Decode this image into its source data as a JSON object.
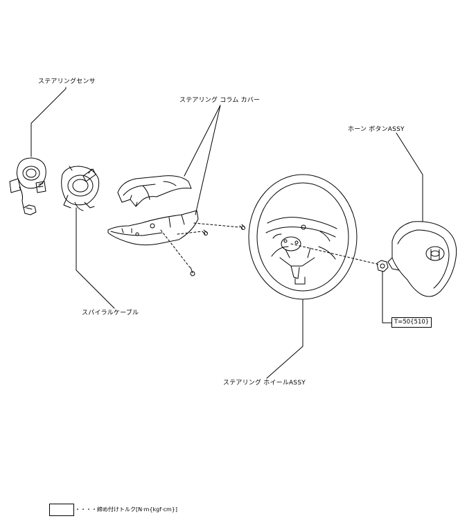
{
  "labels": {
    "steering_sensor": "ステアリングセンサ",
    "column_cover": "ステアリング コラム カバー",
    "horn_button": "ホーン ボタンASSY",
    "spiral_cable": "スパイラルケーブル",
    "steering_wheel": "ステアリング ホイールASSY"
  },
  "torque_spec": "T=50{510}",
  "legend": {
    "text": "・・・・締め付けトルク[N·m{kgf·cm}]"
  }
}
